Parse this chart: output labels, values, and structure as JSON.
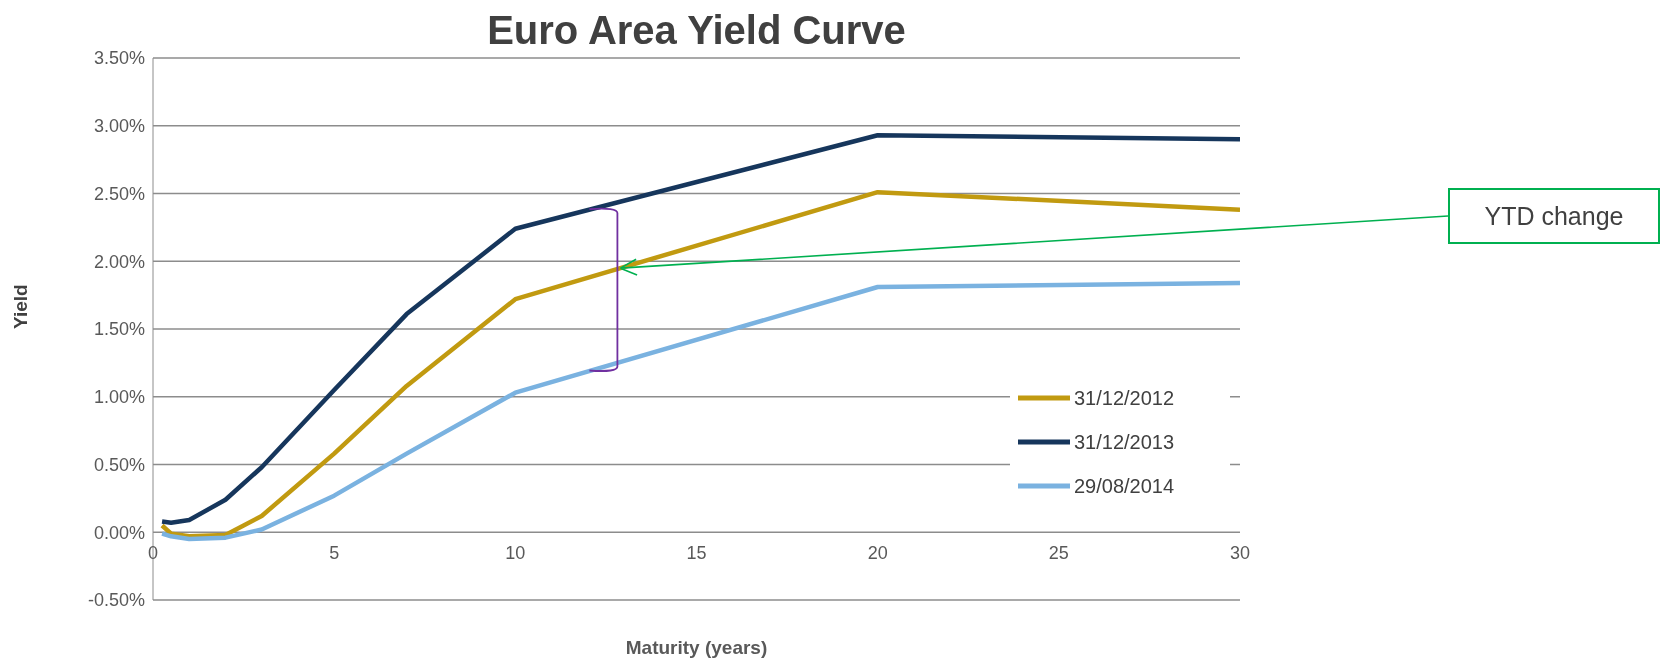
{
  "chart_data": {
    "type": "line",
    "title": "Euro Area Yield Curve",
    "xlabel": "Maturity (years)",
    "ylabel": "Yield",
    "x": [
      0.25,
      0.5,
      1,
      2,
      3,
      5,
      7,
      10,
      20,
      30
    ],
    "series": [
      {
        "name": "31/12/2012",
        "color": "#c19a10",
        "values": [
          0.05,
          -0.01,
          -0.03,
          -0.02,
          0.12,
          0.58,
          1.08,
          1.72,
          2.51,
          2.38
        ]
      },
      {
        "name": "31/12/2013",
        "color": "#16365c",
        "values": [
          0.08,
          0.07,
          0.09,
          0.24,
          0.48,
          1.05,
          1.61,
          2.24,
          2.93,
          2.9
        ]
      },
      {
        "name": "29/08/2014",
        "color": "#7ab2e0",
        "values": [
          -0.01,
          -0.03,
          -0.05,
          -0.04,
          0.02,
          0.27,
          0.58,
          1.03,
          1.81,
          1.84
        ]
      }
    ],
    "xlim": [
      0,
      30
    ],
    "xticks": [
      0,
      5,
      10,
      15,
      20,
      25,
      30
    ],
    "ylim": [
      -0.5,
      3.5
    ],
    "yticks": [
      {
        "value": -0.5,
        "label": "-0.50%"
      },
      {
        "value": 0,
        "label": "0.00%"
      },
      {
        "value": 0.5,
        "label": "0.50%"
      },
      {
        "value": 1,
        "label": "1.00%"
      },
      {
        "value": 1.5,
        "label": "1.50%"
      },
      {
        "value": 2,
        "label": "2.00%"
      },
      {
        "value": 2.5,
        "label": "2.50%"
      },
      {
        "value": 3,
        "label": "3.00%"
      },
      {
        "value": 3.5,
        "label": "3.50%"
      }
    ],
    "grid": "y",
    "legend": "bottom right",
    "marker": "none",
    "line_style": "solid",
    "annotations": [
      "YTD change"
    ]
  }
}
